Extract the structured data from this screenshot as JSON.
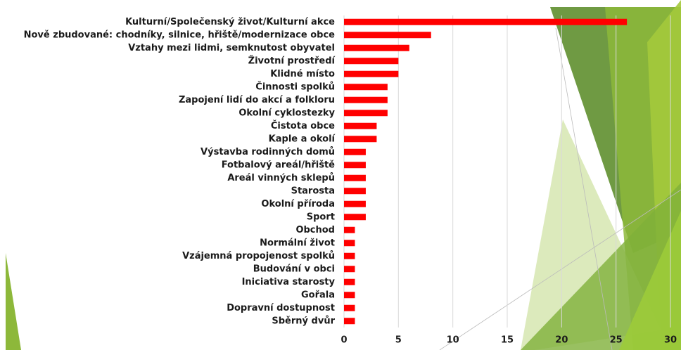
{
  "chart_data": {
    "type": "barh",
    "categories": [
      "Kulturní/Společenský život/Kulturní akce",
      "Nově zbudované: chodníky, silnice, hřiště/modernizace obce",
      "Vztahy mezi lidmi, semknutost obyvatel",
      "Životní prostředí",
      "Klidné místo",
      "Činnosti spolků",
      "Zapojení lidí do akcí a folkloru",
      "Okolní cyklostezky",
      "Čistota obce",
      "Kaple a okolí",
      "Výstavba rodinných domů",
      "Fotbalový areál/hřiště",
      "Areál vinných sklepů",
      "Starosta",
      "Okolní příroda",
      "Sport",
      "Obchod",
      "Normální život",
      "Vzájemná propojenost spolků",
      "Budování v obci",
      "Iniciativa starosty",
      "Gořala",
      "Dopravní dostupnost",
      "Sběrný dvůr"
    ],
    "values": [
      26,
      8,
      6,
      5,
      5,
      4,
      4,
      4,
      3,
      3,
      2,
      2,
      2,
      2,
      2,
      2,
      1,
      1,
      1,
      1,
      1,
      1,
      1,
      1
    ],
    "color": "#ff0000",
    "xlim": [
      0,
      30
    ],
    "xticks": [
      0,
      5,
      10,
      15,
      20,
      25,
      30
    ],
    "grid": true
  }
}
